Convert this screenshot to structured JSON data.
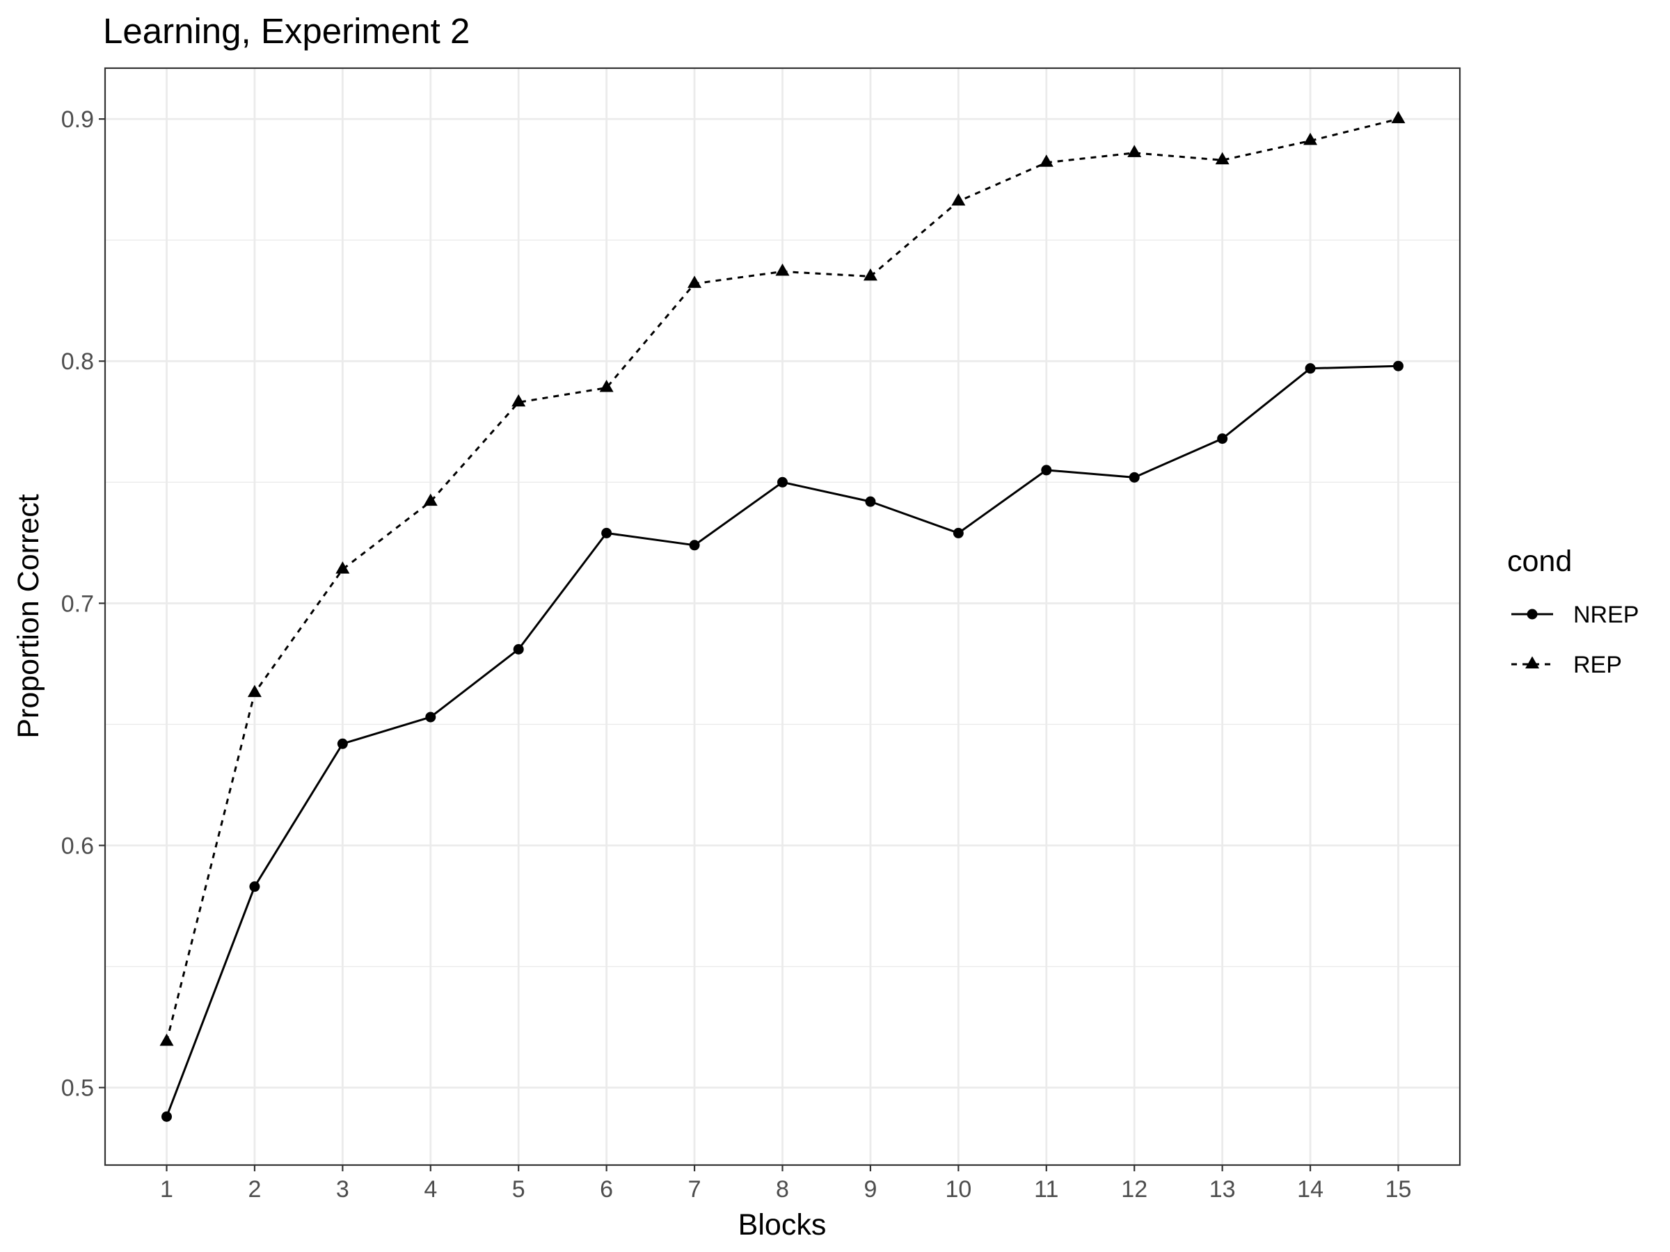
{
  "chart_data": {
    "type": "line",
    "title": "Learning, Experiment 2",
    "xlabel": "Blocks",
    "ylabel": "Proportion Correct",
    "x": [
      1,
      2,
      3,
      4,
      5,
      6,
      7,
      8,
      9,
      10,
      11,
      12,
      13,
      14,
      15
    ],
    "xlim": [
      0.3,
      15.7
    ],
    "ylim": [
      0.468,
      0.921
    ],
    "yticks": [
      0.5,
      0.6,
      0.7,
      0.8,
      0.9
    ],
    "ytick_labels": [
      "0.5",
      "0.6",
      "0.7",
      "0.8",
      "0.9"
    ],
    "grid": true,
    "legend": {
      "title": "cond",
      "position": "right"
    },
    "series": [
      {
        "name": "NREP",
        "marker": "circle",
        "line_style": "solid",
        "color": "#000000",
        "values": [
          0.488,
          0.583,
          0.642,
          0.653,
          0.681,
          0.729,
          0.724,
          0.75,
          0.742,
          0.729,
          0.755,
          0.752,
          0.768,
          0.797,
          0.798
        ]
      },
      {
        "name": "REP",
        "marker": "triangle",
        "line_style": "dashed",
        "color": "#000000",
        "values": [
          0.519,
          0.663,
          0.714,
          0.742,
          0.783,
          0.789,
          0.832,
          0.837,
          0.835,
          0.866,
          0.882,
          0.886,
          0.883,
          0.891,
          0.9
        ]
      }
    ],
    "colors": {
      "panel_border": "#333333",
      "grid": "#ebebeb",
      "tick_text": "#4d4d4d"
    }
  }
}
